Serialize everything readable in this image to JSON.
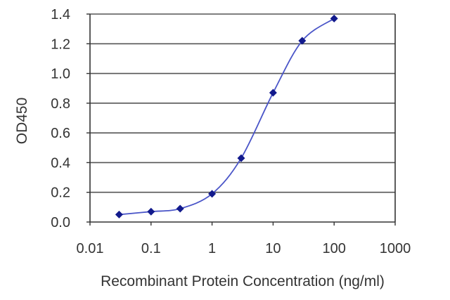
{
  "chart_data": {
    "type": "line",
    "title": "",
    "xlabel": "Recombinant Protein Concentration (ng/ml)",
    "ylabel": "OD450",
    "x_scale": "log",
    "xlim": [
      0.01,
      1000
    ],
    "ylim": [
      0,
      1.4
    ],
    "x_ticks": [
      "0.01",
      "0.1",
      "1",
      "10",
      "100",
      "1000"
    ],
    "y_ticks": [
      "0.0",
      "0.2",
      "0.4",
      "0.6",
      "0.8",
      "1.0",
      "1.2",
      "1.4"
    ],
    "grid": "horizontal",
    "legend": "none",
    "series": [
      {
        "color": "#1f2aa8",
        "marker": "diamond",
        "x": [
          0.03,
          0.1,
          0.3,
          1,
          3,
          10,
          30,
          100
        ],
        "y": [
          0.05,
          0.07,
          0.09,
          0.19,
          0.43,
          0.87,
          1.22,
          1.37
        ]
      }
    ],
    "colors": {
      "line": "#4a55c8",
      "marker": "#121a8c",
      "grid": "#555555",
      "axis": "#333333"
    }
  }
}
